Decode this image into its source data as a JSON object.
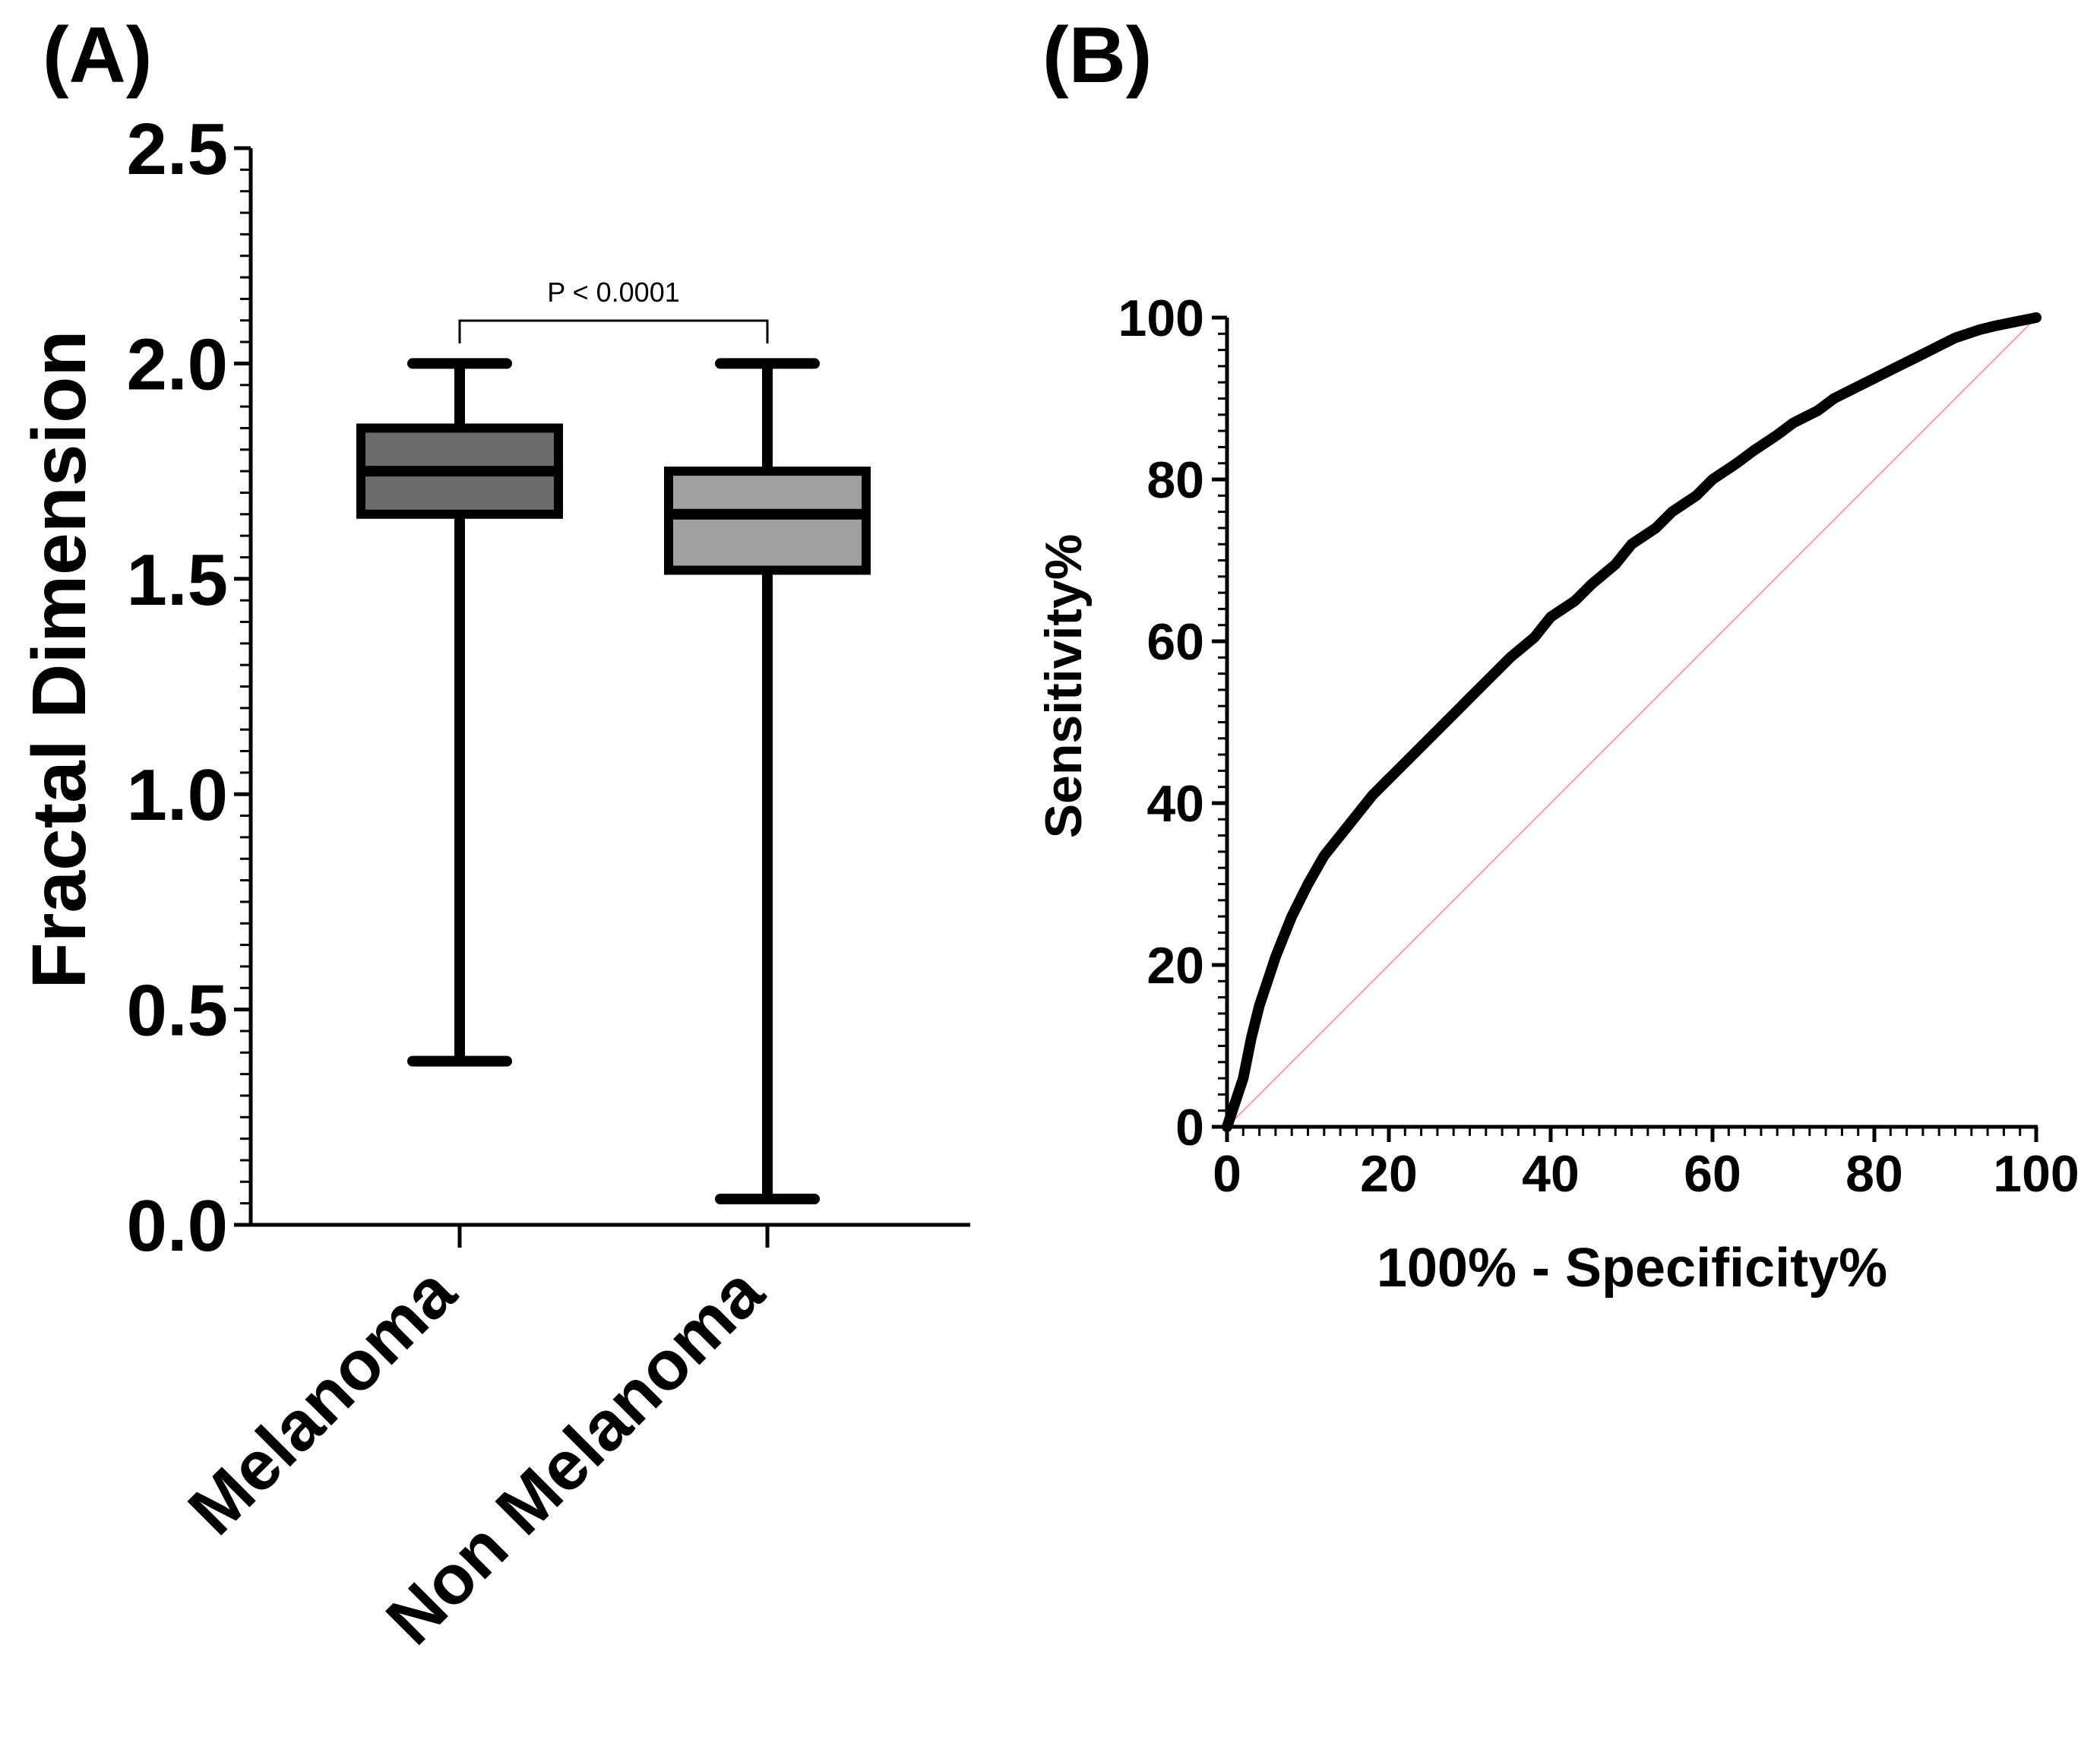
{
  "panels": {
    "a": {
      "label": "(A)"
    },
    "b": {
      "label": "(B)"
    }
  },
  "chart_data": [
    {
      "id": "box",
      "type": "box",
      "ylabel": "Fractal Dimension",
      "ylim": [
        0,
        2.5
      ],
      "yticks": [
        0.0,
        0.5,
        1.0,
        1.5,
        2.0,
        2.5
      ],
      "ytick_labels": [
        "0.0",
        "0.5",
        "1.0",
        "1.5",
        "2.0",
        "2.5"
      ],
      "categories": [
        "Melanoma",
        "Non Melanoma"
      ],
      "boxes": [
        {
          "name": "Melanoma",
          "min": 0.38,
          "q1": 1.65,
          "median": 1.75,
          "q3": 1.85,
          "max": 2.0,
          "fill": "#6b6b6b"
        },
        {
          "name": "Non Melanoma",
          "min": 0.06,
          "q1": 1.52,
          "median": 1.65,
          "q3": 1.75,
          "max": 2.0,
          "fill": "#a0a0a0"
        }
      ],
      "annotation": "P < 0.0001"
    },
    {
      "id": "roc",
      "type": "line",
      "xlabel": "100% - Specificity%",
      "ylabel": "Sensitivity%",
      "xlim": [
        0,
        100
      ],
      "ylim": [
        0,
        100
      ],
      "xticks": [
        0,
        20,
        40,
        60,
        80,
        100
      ],
      "yticks": [
        0,
        20,
        40,
        60,
        80,
        100
      ],
      "series": [
        {
          "name": "ROC curve",
          "color": "#000000",
          "x": [
            0,
            1,
            2,
            3,
            4,
            5,
            6,
            7,
            8,
            10,
            12,
            14,
            16,
            18,
            20,
            22,
            25,
            28,
            30,
            33,
            35,
            38,
            40,
            43,
            45,
            48,
            50,
            53,
            55,
            58,
            60,
            63,
            65,
            68,
            70,
            73,
            75,
            78,
            80,
            83,
            85,
            88,
            90,
            93,
            95,
            98,
            100
          ],
          "y": [
            0,
            3,
            6,
            11,
            15,
            18,
            21,
            23.5,
            26,
            30,
            33.5,
            36,
            38.5,
            41,
            43,
            45,
            48,
            51,
            53,
            56,
            58,
            60.5,
            63,
            65,
            67,
            69.5,
            72,
            74,
            76,
            78,
            80,
            82,
            83.5,
            85.5,
            87,
            88.5,
            90,
            91.5,
            92.5,
            94,
            95,
            96.5,
            97.5,
            98.5,
            99,
            99.6,
            100
          ]
        },
        {
          "name": "Reference line",
          "color": "#f2a0a0",
          "x": [
            0,
            100
          ],
          "y": [
            0,
            100
          ]
        }
      ]
    }
  ]
}
